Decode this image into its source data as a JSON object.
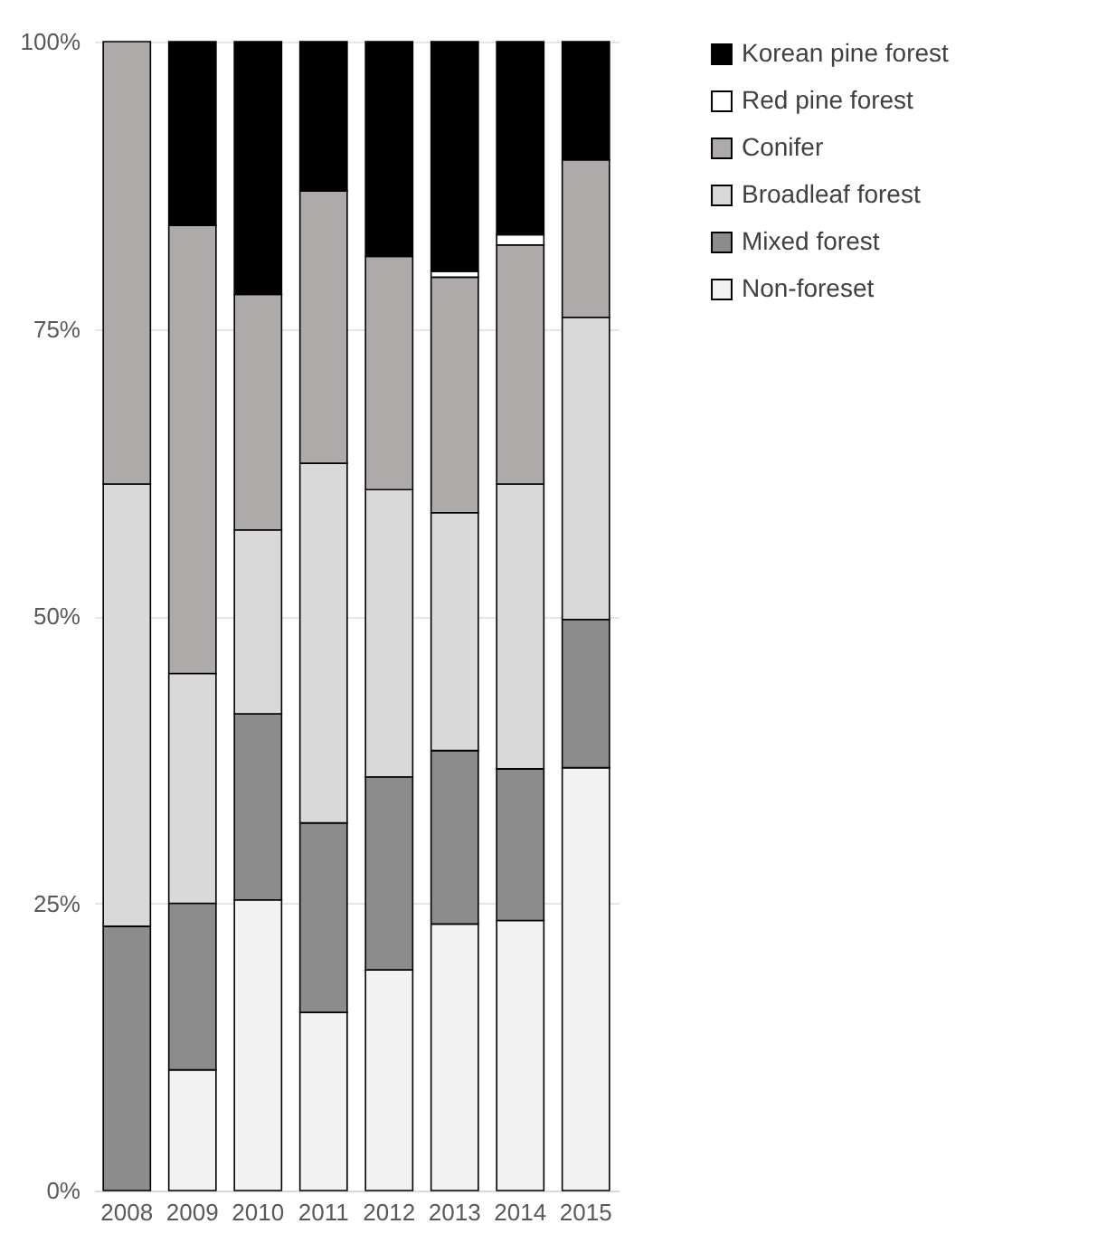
{
  "chart_data": {
    "type": "bar",
    "stacked": true,
    "categories": [
      "2008",
      "2009",
      "2010",
      "2011",
      "2012",
      "2013",
      "2014",
      "2015"
    ],
    "ylim": [
      0,
      100
    ],
    "yticks": [
      {
        "value": 0,
        "label": "0%"
      },
      {
        "value": 25,
        "label": "25%"
      },
      {
        "value": 50,
        "label": "50%"
      },
      {
        "value": 75,
        "label": "75%"
      },
      {
        "value": 100,
        "label": "100%"
      }
    ],
    "grid": "y",
    "legend": "right",
    "series": [
      {
        "name": "Non-foreset",
        "color": "#f2f2f2",
        "values": [
          0,
          10.5,
          25.3,
          15.5,
          19.2,
          23.2,
          23.5,
          36.8
        ]
      },
      {
        "name": "Mixed forest",
        "color": "#8c8c8c",
        "values": [
          23,
          14.5,
          16.2,
          16.5,
          16.8,
          15.1,
          13.2,
          12.9
        ]
      },
      {
        "name": "Broadleaf forest",
        "color": "#d9d9d9",
        "values": [
          38.5,
          20,
          16,
          31.3,
          25,
          20.7,
          24.8,
          26.3
        ]
      },
      {
        "name": "Conifer",
        "color": "#aeaaaa",
        "values": [
          38.5,
          39,
          20.5,
          23.7,
          20.3,
          20.5,
          20.8,
          13.7
        ]
      },
      {
        "name": "Red pine forest",
        "color": "#ffffff",
        "values": [
          0,
          0,
          0,
          0,
          0,
          0.5,
          0.9,
          0
        ]
      },
      {
        "name": "Korean pine forest",
        "color": "#000000",
        "values": [
          0,
          16,
          22,
          13,
          18.7,
          20,
          16.8,
          10.3
        ]
      }
    ]
  }
}
